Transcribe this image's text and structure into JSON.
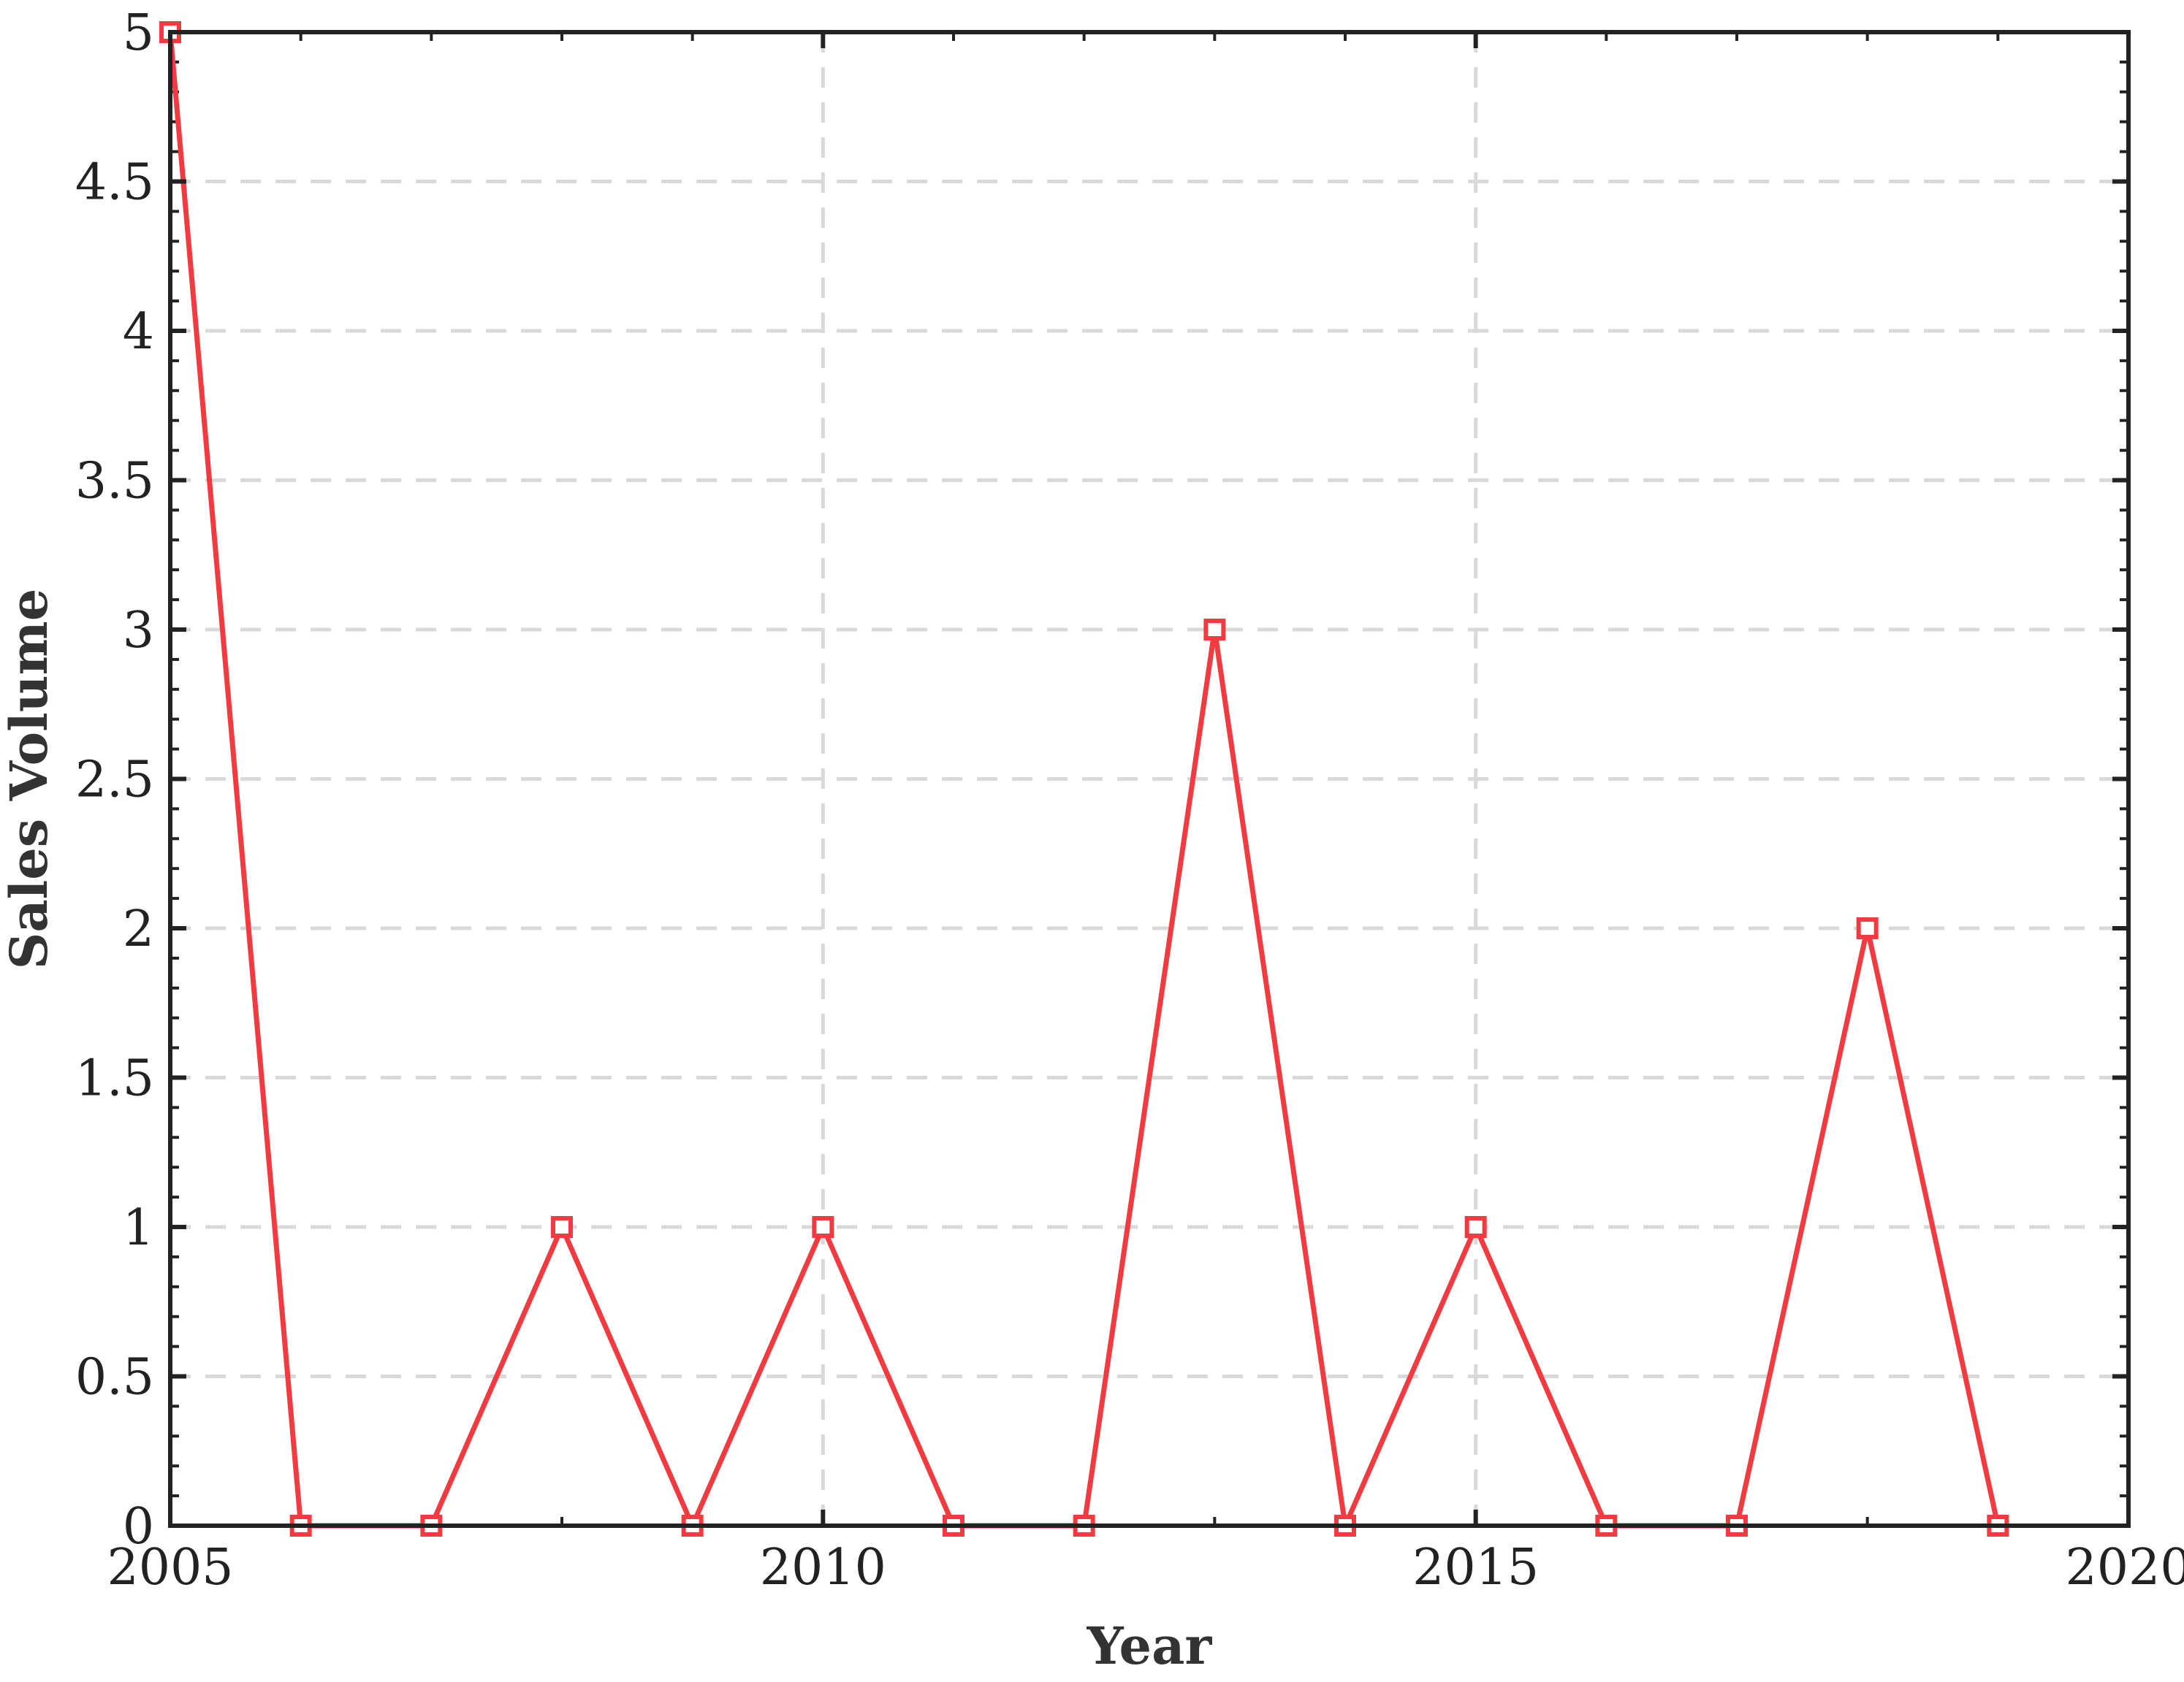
{
  "chart_data": {
    "type": "line",
    "title": "",
    "xlabel": "Year",
    "ylabel": "Sales Volume",
    "xlim": [
      2005,
      2020
    ],
    "ylim": [
      0,
      5
    ],
    "x_ticks": [
      "2005",
      "2010",
      "2015",
      "2020"
    ],
    "y_ticks": [
      "0",
      "0.5",
      "1",
      "1.5",
      "2",
      "2.5",
      "3",
      "3.5",
      "4",
      "4.5",
      "5"
    ],
    "grid": true,
    "grid_style": "dashed",
    "colors": {
      "series": "#f23b40",
      "axis": "#222222",
      "grid": "#d9d9d9"
    },
    "marker": "square",
    "series": [
      {
        "x": [
          2005,
          2006,
          2007,
          2008,
          2009,
          2010,
          2011,
          2012,
          2013,
          2014,
          2015,
          2016,
          2017,
          2018,
          2019
        ],
        "y": [
          5,
          0,
          0,
          1,
          0,
          1,
          0,
          0,
          3,
          0,
          1,
          0,
          0,
          2,
          0
        ]
      }
    ]
  }
}
